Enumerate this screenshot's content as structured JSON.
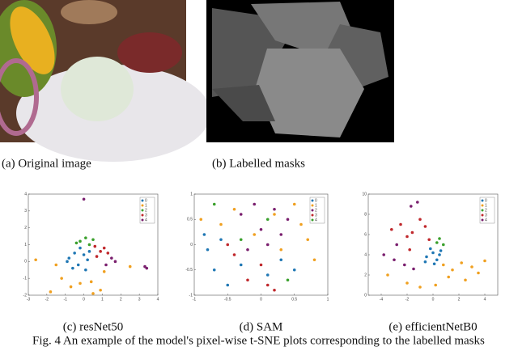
{
  "panels": [
    {
      "caption": "(a)  Original image"
    },
    {
      "caption": "(b) Labelled masks"
    }
  ],
  "chart_data": [
    {
      "type": "scatter",
      "caption": "(c) resNet50",
      "xlim": [
        -3,
        4
      ],
      "ylim": [
        -2,
        4
      ],
      "xticks": [
        -3,
        -2,
        -1,
        0,
        1,
        2,
        3,
        4
      ],
      "yticks": [
        -2,
        -1,
        0,
        1,
        2,
        3,
        4
      ],
      "series": [
        {
          "name": "0",
          "color": "#1f77b4",
          "x": [
            -0.8,
            -0.5,
            -0.3,
            0,
            0.2,
            -0.6,
            -0.2,
            0.3,
            -0.9,
            0.1
          ],
          "y": [
            0.2,
            0.5,
            -0.2,
            0.4,
            0.1,
            -0.4,
            0.8,
            0.6,
            0.0,
            -0.5
          ]
        },
        {
          "name": "1",
          "color": "#f0a020",
          "x": [
            -2.6,
            -1.8,
            -1.2,
            -0.7,
            0.4,
            0.9,
            1.1,
            2.5,
            -1.5,
            0.5,
            -0.2
          ],
          "y": [
            0.1,
            -1.8,
            -1.0,
            -1.5,
            -1.2,
            -1.7,
            -0.6,
            -0.3,
            -0.2,
            -1.9,
            -1.3
          ]
        },
        {
          "name": "2",
          "color": "#3aa02c",
          "x": [
            -0.2,
            0.1,
            0.3,
            -0.4,
            0.5
          ],
          "y": [
            1.2,
            1.4,
            1.0,
            1.1,
            1.3
          ]
        },
        {
          "name": "3",
          "color": "#c0282c",
          "x": [
            0.6,
            0.9,
            1.1,
            0.7,
            1.3
          ],
          "y": [
            0.9,
            0.6,
            0.8,
            0.3,
            0.5
          ]
        },
        {
          "name": "4",
          "color": "#7a1f6e",
          "x": [
            0.0,
            1.5,
            1.7,
            1.2,
            3.3,
            3.4
          ],
          "y": [
            3.7,
            0.2,
            0.0,
            -0.2,
            -0.3,
            -0.4
          ]
        }
      ]
    },
    {
      "type": "scatter",
      "caption": "(d) SAM",
      "xlim": [
        -1,
        1
      ],
      "ylim": [
        -1,
        1
      ],
      "xticks": [
        -1,
        -0.5,
        0,
        0.5,
        1
      ],
      "yticks": [
        -1,
        -0.5,
        0,
        0.5,
        1
      ],
      "series": [
        {
          "name": "0",
          "color": "#1f77b4",
          "x": [
            -0.85,
            -0.8,
            -0.7,
            -0.6,
            -0.5,
            -0.3,
            0.1,
            0.3,
            0.5
          ],
          "y": [
            0.2,
            -0.1,
            -0.5,
            0.1,
            -0.8,
            -0.4,
            -0.6,
            -0.3,
            -0.5
          ]
        },
        {
          "name": "1",
          "color": "#f0a020",
          "x": [
            -0.9,
            -0.6,
            -0.4,
            -0.1,
            0.2,
            0.5,
            0.7,
            0.8,
            0.6,
            0.3
          ],
          "y": [
            0.5,
            0.4,
            0.7,
            0.2,
            0.6,
            0.8,
            0.1,
            -0.3,
            0.4,
            -0.1
          ]
        },
        {
          "name": "2",
          "color": "#7a1f6e",
          "x": [
            -0.3,
            -0.1,
            0.0,
            0.2,
            0.3,
            0.4,
            -0.2,
            0.1
          ],
          "y": [
            0.6,
            0.8,
            0.3,
            0.7,
            0.2,
            0.5,
            -0.1,
            0.0
          ]
        },
        {
          "name": "3",
          "color": "#c0282c",
          "x": [
            -0.4,
            -0.2,
            0.0,
            0.1,
            0.2,
            -0.5
          ],
          "y": [
            -0.2,
            -0.7,
            -0.4,
            -0.8,
            -0.9,
            0.0
          ]
        },
        {
          "name": "4",
          "color": "#3aa02c",
          "x": [
            -0.7,
            -0.3,
            0.1,
            0.4
          ],
          "y": [
            0.8,
            0.1,
            0.5,
            -0.7
          ]
        }
      ]
    },
    {
      "type": "scatter",
      "caption": "(e) efficientNetB0",
      "xlim": [
        -5,
        5
      ],
      "ylim": [
        0,
        10
      ],
      "xticks": [
        -4,
        -2,
        0,
        2,
        4
      ],
      "yticks": [
        0,
        2,
        4,
        6,
        8,
        10
      ],
      "series": [
        {
          "name": "0",
          "color": "#1f77b4",
          "x": [
            -0.5,
            0,
            0.3,
            -0.2,
            0.5,
            0.1,
            -0.6,
            0.6
          ],
          "y": [
            3.8,
            4.2,
            3.5,
            4.6,
            4.0,
            3.1,
            3.3,
            4.4
          ]
        },
        {
          "name": "1",
          "color": "#f0a020",
          "x": [
            0.8,
            1.5,
            2.2,
            3,
            3.5,
            4,
            1.2,
            2.5,
            -2,
            -1,
            0.2,
            -3.5
          ],
          "y": [
            3.0,
            2.5,
            3.2,
            2.8,
            2.2,
            3.4,
            1.8,
            1.5,
            1.2,
            0.8,
            1.0,
            2.0
          ]
        },
        {
          "name": "2",
          "color": "#3aa02c",
          "x": [
            0.3,
            0.5,
            0.8
          ],
          "y": [
            5.2,
            5.6,
            5.0
          ]
        },
        {
          "name": "3",
          "color": "#c0282c",
          "x": [
            -3.2,
            -2.5,
            -2,
            -1.6,
            -1,
            -0.6,
            -0.3,
            -1.8
          ],
          "y": [
            6.5,
            7.0,
            5.8,
            6.2,
            7.5,
            6.8,
            5.5,
            4.5
          ]
        },
        {
          "name": "4",
          "color": "#7a1f6e",
          "x": [
            -3.8,
            -3,
            -2.2,
            -1.5,
            -2.8,
            -1.2,
            -1.7
          ],
          "y": [
            4.0,
            3.5,
            3.0,
            2.6,
            5.0,
            9.2,
            8.8
          ]
        }
      ]
    }
  ],
  "figure_caption": "Fig. 4 An example of the model's pixel-wise t-SNE plots corresponding to the labelled masks"
}
